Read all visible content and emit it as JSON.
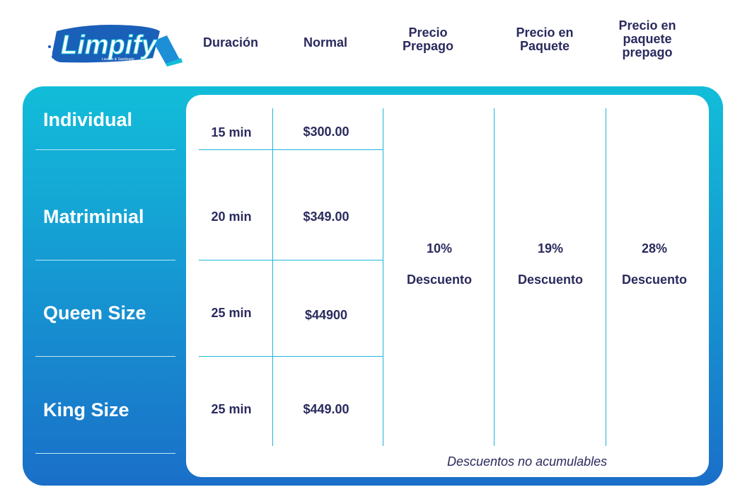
{
  "brand": {
    "name": "Limpify",
    "tagline": "Lavado & Sanitizado",
    "colors": {
      "primary": "#1a6fc8",
      "accent": "#12bdd9",
      "text": "#2a2a5e"
    }
  },
  "headers": {
    "duration": "Duración",
    "normal": "Normal",
    "prepaid_l1": "Precio",
    "prepaid_l2": "Prepago",
    "package_l1": "Precio en",
    "package_l2": "Paquete",
    "package_prepaid_l1": "Precio en",
    "package_prepaid_l2": "paquete",
    "package_prepaid_l3": "prepago"
  },
  "rows": [
    {
      "label": "Individual",
      "duration": "15 min",
      "normal": "$300.00"
    },
    {
      "label": "Matriminial",
      "duration": "20 min",
      "normal": "$349.00"
    },
    {
      "label": "Queen Size",
      "duration": "25 min",
      "normal": "$44900"
    },
    {
      "label": "King Size",
      "duration": "25 min",
      "normal": "$449.00"
    }
  ],
  "discounts": {
    "prepaid": {
      "percent": "10%",
      "label": "Descuento"
    },
    "package": {
      "percent": "19%",
      "label": "Descuento"
    },
    "package_prepaid": {
      "percent": "28%",
      "label": "Descuento"
    }
  },
  "note": "Descuentos no acumulables"
}
